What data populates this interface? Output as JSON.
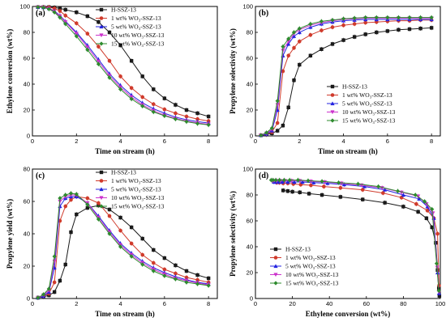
{
  "series_styles": [
    {
      "color": "#1a1a1a",
      "marker": "square"
    },
    {
      "color": "#d03b2c",
      "marker": "circle"
    },
    {
      "color": "#2323e0",
      "marker": "triangle-up"
    },
    {
      "color": "#cc33cc",
      "marker": "triangle-down"
    },
    {
      "color": "#2e8b2e",
      "marker": "diamond"
    }
  ],
  "chart_data": [
    {
      "id": "a",
      "type": "line",
      "panel_label": "(a)",
      "xlabel": "Time on stream (h)",
      "ylabel": "Ethylene conversion (wt%)",
      "xlim": [
        0,
        8.4
      ],
      "ylim": [
        0,
        100
      ],
      "xticks": [
        0,
        2,
        4,
        6,
        8
      ],
      "yticks": [
        0,
        20,
        40,
        60,
        80,
        100
      ],
      "legend_position": "top-right",
      "series": [
        {
          "name": "H-SSZ-13",
          "x": [
            0.25,
            0.5,
            0.75,
            1.0,
            1.25,
            1.5,
            2.0,
            2.5,
            3.0,
            3.5,
            4.0,
            4.5,
            5.0,
            5.5,
            6.0,
            6.5,
            7.0,
            7.5,
            8.0
          ],
          "y": [
            99.5,
            99.5,
            99.5,
            99.2,
            98.5,
            97.5,
            95.5,
            92.5,
            88,
            80,
            70,
            58,
            46,
            36,
            29,
            24,
            20,
            17.5,
            15
          ]
        },
        {
          "name": "1 wt% WO₃-SSZ-13",
          "x": [
            0.25,
            0.5,
            0.75,
            1.0,
            1.25,
            1.5,
            2.0,
            2.5,
            3.0,
            3.5,
            4.0,
            4.5,
            5.0,
            5.5,
            6.0,
            6.5,
            7.0,
            7.5,
            8.0
          ],
          "y": [
            99.5,
            99.5,
            99.3,
            98.5,
            96.5,
            93,
            87,
            79,
            69,
            58,
            46,
            37,
            30,
            24.5,
            20.5,
            17.5,
            15,
            13,
            11.5
          ]
        },
        {
          "name": "5 wt% WO₃-SSZ-13",
          "x": [
            0.25,
            0.5,
            0.75,
            1.0,
            1.25,
            1.5,
            2.0,
            2.5,
            3.0,
            3.5,
            4.0,
            4.5,
            5.0,
            5.5,
            6.0,
            6.5,
            7.0,
            7.5,
            8.0
          ],
          "y": [
            99.5,
            99.3,
            98.5,
            96.5,
            93,
            88.5,
            80,
            70,
            59,
            48,
            39,
            31.5,
            25.5,
            21,
            17.5,
            14.5,
            12.5,
            11,
            10
          ]
        },
        {
          "name": "10 wt% WO₃-SSZ-13",
          "x": [
            0.25,
            0.5,
            0.75,
            1.0,
            1.25,
            1.5,
            2.0,
            2.5,
            3.0,
            3.5,
            4.0,
            4.5,
            5.0,
            5.5,
            6.0,
            6.5,
            7.0,
            7.5,
            8.0
          ],
          "y": [
            99.5,
            99.3,
            98.3,
            96,
            92.5,
            88,
            79,
            68.5,
            57.5,
            46.5,
            37.5,
            30,
            24,
            19.5,
            16,
            13.5,
            11.5,
            10,
            9
          ]
        },
        {
          "name": "15 wt% WO₃-SSZ-13",
          "x": [
            0.25,
            0.5,
            0.75,
            1.0,
            1.25,
            1.5,
            2.0,
            2.5,
            3.0,
            3.5,
            4.0,
            4.5,
            5.0,
            5.5,
            6.0,
            6.5,
            7.0,
            7.5,
            8.0
          ],
          "y": [
            99.5,
            99.2,
            98,
            95.5,
            91.5,
            86.5,
            77,
            66.5,
            55.5,
            45,
            36,
            28.5,
            23,
            18.5,
            15.5,
            13,
            11,
            9.5,
            8.5
          ]
        }
      ]
    },
    {
      "id": "b",
      "type": "line",
      "panel_label": "(b)",
      "xlabel": "Time on stream (h)",
      "ylabel": "Propylene selectivity (wt%)",
      "xlim": [
        0,
        8.4
      ],
      "ylim": [
        0,
        100
      ],
      "xticks": [
        0,
        2,
        4,
        6,
        8
      ],
      "yticks": [
        0,
        20,
        40,
        60,
        80,
        100
      ],
      "legend_position": "bottom-right",
      "series": [
        {
          "name": "H-SSZ-13",
          "x": [
            0.25,
            0.5,
            0.75,
            1.0,
            1.25,
            1.5,
            1.75,
            2.0,
            2.5,
            3.0,
            3.5,
            4.0,
            4.5,
            5.0,
            5.5,
            6.0,
            6.5,
            7.0,
            7.5,
            8.0
          ],
          "y": [
            0.5,
            1,
            2,
            4,
            8,
            22,
            43,
            55,
            62,
            67,
            71,
            74,
            76.5,
            78.5,
            80,
            81,
            82,
            82.5,
            83,
            83.5
          ]
        },
        {
          "name": "1 wt% WO₃-SSZ-13",
          "x": [
            0.25,
            0.5,
            0.75,
            1.0,
            1.25,
            1.5,
            1.75,
            2.0,
            2.5,
            3.0,
            3.5,
            4.0,
            4.5,
            5.0,
            5.5,
            6.0,
            6.5,
            7.0,
            7.5,
            8.0
          ],
          "y": [
            0.5,
            1.5,
            3,
            10,
            50,
            62,
            68,
            73,
            78,
            81.5,
            84,
            85.5,
            86.5,
            87.5,
            88,
            88.5,
            89,
            89,
            89.5,
            89.5
          ]
        },
        {
          "name": "5 wt% WO₃-SSZ-13",
          "x": [
            0.25,
            0.5,
            0.75,
            1.0,
            1.25,
            1.5,
            1.75,
            2.0,
            2.5,
            3.0,
            3.5,
            4.0,
            4.5,
            5.0,
            5.5,
            6.0,
            6.5,
            7.0,
            7.5,
            8.0
          ],
          "y": [
            0.5,
            1.5,
            4,
            20,
            62,
            71,
            77,
            80,
            84,
            86.5,
            88,
            89,
            89.5,
            90,
            90,
            90,
            90,
            90,
            90,
            90
          ]
        },
        {
          "name": "10 wt% WO₃-SSZ-13",
          "x": [
            0.25,
            0.5,
            0.75,
            1.0,
            1.25,
            1.5,
            1.75,
            2.0,
            2.5,
            3.0,
            3.5,
            4.0,
            4.5,
            5.0,
            5.5,
            6.0,
            6.5,
            7.0,
            7.5,
            8.0
          ],
          "y": [
            0.5,
            2,
            5,
            24,
            66,
            73,
            79,
            82,
            85.5,
            87.5,
            89,
            90,
            90.5,
            91,
            91,
            91,
            91,
            91,
            91,
            91
          ]
        },
        {
          "name": "15 wt% WO₃-SSZ-13",
          "x": [
            0.25,
            0.5,
            0.75,
            1.0,
            1.25,
            1.5,
            1.75,
            2.0,
            2.5,
            3.0,
            3.5,
            4.0,
            4.5,
            5.0,
            5.5,
            6.0,
            6.5,
            7.0,
            7.5,
            8.0
          ],
          "y": [
            0.5,
            2.5,
            6,
            27,
            69,
            75,
            80,
            83,
            86.5,
            88.5,
            89.5,
            90.5,
            91,
            91.5,
            91.5,
            91.5,
            91.5,
            91.5,
            91.5,
            91.5
          ]
        }
      ]
    },
    {
      "id": "c",
      "type": "line",
      "panel_label": "(c)",
      "xlabel": "Time on stream (h)",
      "ylabel": "Propylene yield (wt%)",
      "xlim": [
        0,
        8.4
      ],
      "ylim": [
        0,
        80
      ],
      "xticks": [
        0,
        2,
        4,
        6,
        8
      ],
      "yticks": [
        0,
        20,
        40,
        60,
        80
      ],
      "legend_position": "top-right",
      "series": [
        {
          "name": "H-SSZ-13",
          "x": [
            0.25,
            0.5,
            0.75,
            1.0,
            1.25,
            1.5,
            1.75,
            2.0,
            2.5,
            3.0,
            3.5,
            4.0,
            4.5,
            5.0,
            5.5,
            6.0,
            6.5,
            7.0,
            7.5,
            8.0
          ],
          "y": [
            0.5,
            1,
            2,
            4,
            11,
            21,
            41,
            52,
            56,
            57.5,
            55,
            50,
            44,
            37,
            30,
            25,
            20.5,
            17,
            14.5,
            12.5
          ]
        },
        {
          "name": "1 wt% WO₃-SSZ-13",
          "x": [
            0.25,
            0.5,
            0.75,
            1.0,
            1.25,
            1.5,
            1.75,
            2.0,
            2.5,
            3.0,
            3.5,
            4.0,
            4.5,
            5.0,
            5.5,
            6.0,
            6.5,
            7.0,
            7.5,
            8.0
          ],
          "y": [
            0.5,
            1.5,
            3,
            10,
            48,
            57,
            61,
            63,
            62,
            59,
            51,
            42,
            34,
            27,
            22,
            18,
            15.5,
            13,
            11.5,
            10
          ]
        },
        {
          "name": "5 wt% WO₃-SSZ-13",
          "x": [
            0.25,
            0.5,
            0.75,
            1.0,
            1.25,
            1.5,
            1.75,
            2.0,
            2.5,
            3.0,
            3.5,
            4.0,
            4.5,
            5.0,
            5.5,
            6.0,
            6.5,
            7.0,
            7.5,
            8.0
          ],
          "y": [
            0.5,
            1.5,
            4,
            19,
            57,
            62,
            63,
            63,
            59,
            51,
            42,
            34,
            28,
            23,
            19,
            16,
            13.5,
            11.5,
            10,
            9
          ]
        },
        {
          "name": "10 wt% WO₃-SSZ-13",
          "x": [
            0.25,
            0.5,
            0.75,
            1.0,
            1.25,
            1.5,
            1.75,
            2.0,
            2.5,
            3.0,
            3.5,
            4.0,
            4.5,
            5.0,
            5.5,
            6.0,
            6.5,
            7.0,
            7.5,
            8.0
          ],
          "y": [
            0.5,
            2,
            5,
            23,
            60,
            63,
            64,
            64,
            59,
            50,
            41,
            33,
            27,
            22,
            18,
            15,
            12.5,
            11,
            9.5,
            8.5
          ]
        },
        {
          "name": "15 wt% WO₃-SSZ-13",
          "x": [
            0.25,
            0.5,
            0.75,
            1.0,
            1.25,
            1.5,
            1.75,
            2.0,
            2.5,
            3.0,
            3.5,
            4.0,
            4.5,
            5.0,
            5.5,
            6.0,
            6.5,
            7.0,
            7.5,
            8.0
          ],
          "y": [
            0.5,
            2.5,
            6,
            26,
            62,
            64,
            65,
            64.5,
            58,
            49,
            40,
            32,
            26,
            21,
            17,
            14,
            12,
            10,
            9,
            8
          ]
        }
      ]
    },
    {
      "id": "d",
      "type": "line",
      "panel_label": "(d)",
      "xlabel": "Ethylene conversion (wt%)",
      "ylabel": "Propylene selectivity (wt%)",
      "xlim": [
        0,
        100
      ],
      "ylim": [
        0,
        100
      ],
      "xticks": [
        0,
        20,
        40,
        60,
        80,
        100
      ],
      "yticks": [
        0,
        20,
        40,
        60,
        80,
        100
      ],
      "legend_position": "bottom-left",
      "series": [
        {
          "name": "H-SSZ-13",
          "x": [
            15,
            17.5,
            20,
            24,
            29,
            36,
            46,
            58,
            70,
            80,
            88,
            92.5,
            95.5,
            97.5,
            98.5,
            99.2,
            99.5
          ],
          "y": [
            83.5,
            83,
            82.5,
            82,
            81,
            80,
            78.5,
            76.5,
            74,
            71,
            67,
            62,
            55,
            43,
            22,
            8,
            2
          ]
        },
        {
          "name": "1 wt% WO₃-SSZ-13",
          "x": [
            11.5,
            13,
            15,
            17.5,
            20.5,
            24.5,
            30,
            37,
            46,
            58,
            69,
            79,
            87,
            93,
            96.5,
            98.5,
            99.3
          ],
          "y": [
            89.5,
            89.5,
            89,
            89,
            88.5,
            88,
            87.5,
            86.5,
            85.5,
            84,
            81.5,
            78,
            73,
            68,
            62,
            50,
            10
          ]
        },
        {
          "name": "5 wt% WO₃-SSZ-13",
          "x": [
            10,
            11,
            12.5,
            14.5,
            17.5,
            21,
            25.5,
            31.5,
            39,
            48,
            59,
            70,
            80,
            88.5,
            93,
            96.5,
            98.5,
            99.3
          ],
          "y": [
            90,
            90,
            90,
            90,
            90,
            90,
            90,
            89.5,
            89,
            88,
            86.5,
            84,
            80,
            77,
            71,
            62,
            20,
            4
          ]
        },
        {
          "name": "10 wt% WO₃-SSZ-13",
          "x": [
            9,
            10,
            11.5,
            13.5,
            16,
            19.5,
            24,
            30,
            37.5,
            46.5,
            57.5,
            68.5,
            79,
            88,
            92.5,
            96,
            98.3,
            99.3
          ],
          "y": [
            91,
            91,
            91,
            91,
            91,
            91,
            91,
            90.5,
            90,
            89,
            87.5,
            85.5,
            82,
            79,
            73,
            66,
            24,
            5
          ]
        },
        {
          "name": "15 wt% WO₃-SSZ-13",
          "x": [
            8.5,
            9.5,
            11,
            13,
            15.5,
            18.5,
            23,
            28.5,
            36,
            45,
            55.5,
            66.5,
            77,
            86.5,
            91.5,
            95.5,
            98,
            99.2
          ],
          "y": [
            91.5,
            91.5,
            91.5,
            91.5,
            91.5,
            91.5,
            91.5,
            91,
            90.5,
            89.5,
            88.5,
            86.5,
            83,
            80,
            75,
            69,
            27,
            6
          ]
        }
      ]
    }
  ]
}
